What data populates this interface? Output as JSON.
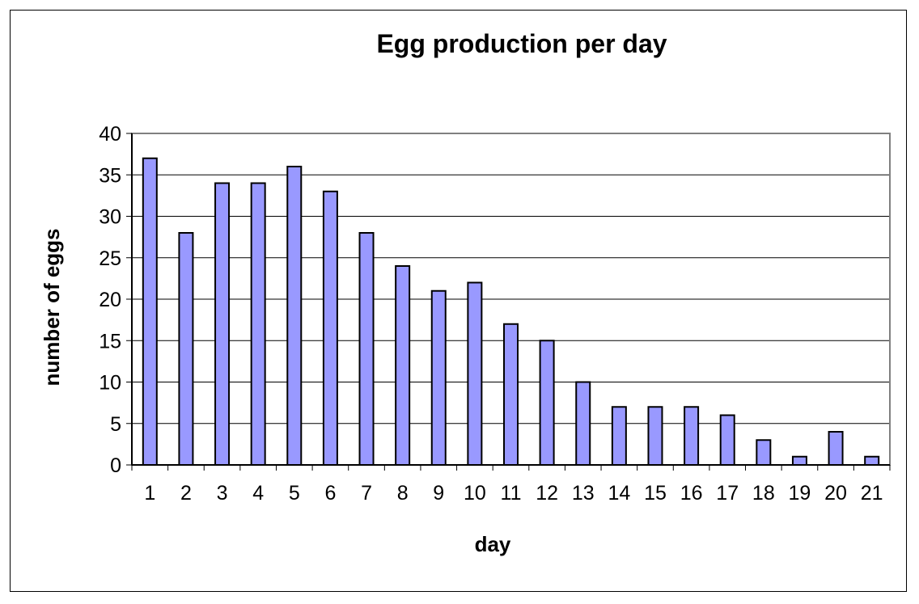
{
  "chart_data": {
    "type": "bar",
    "title": "Egg production per day",
    "xlabel": "day",
    "ylabel": "number of eggs",
    "categories": [
      "1",
      "2",
      "3",
      "4",
      "5",
      "6",
      "7",
      "8",
      "9",
      "10",
      "11",
      "12",
      "13",
      "14",
      "15",
      "16",
      "17",
      "18",
      "19",
      "20",
      "21"
    ],
    "series": [
      {
        "values": [
          37,
          28,
          34,
          34,
          36,
          33,
          28,
          24,
          21,
          22,
          17,
          15,
          10,
          7,
          7,
          7,
          6,
          3,
          1,
          4,
          1
        ]
      }
    ],
    "ylim": [
      0,
      40
    ],
    "yticks": [
      0,
      5,
      10,
      15,
      20,
      25,
      30,
      35,
      40
    ],
    "grid": "horizontal",
    "legend": "none",
    "colors": {
      "bar_fill": "#9999FF",
      "bar_stroke": "#000000",
      "gridline": "#000000",
      "plot_border": "#808080",
      "background": "#FFFFFF"
    }
  }
}
